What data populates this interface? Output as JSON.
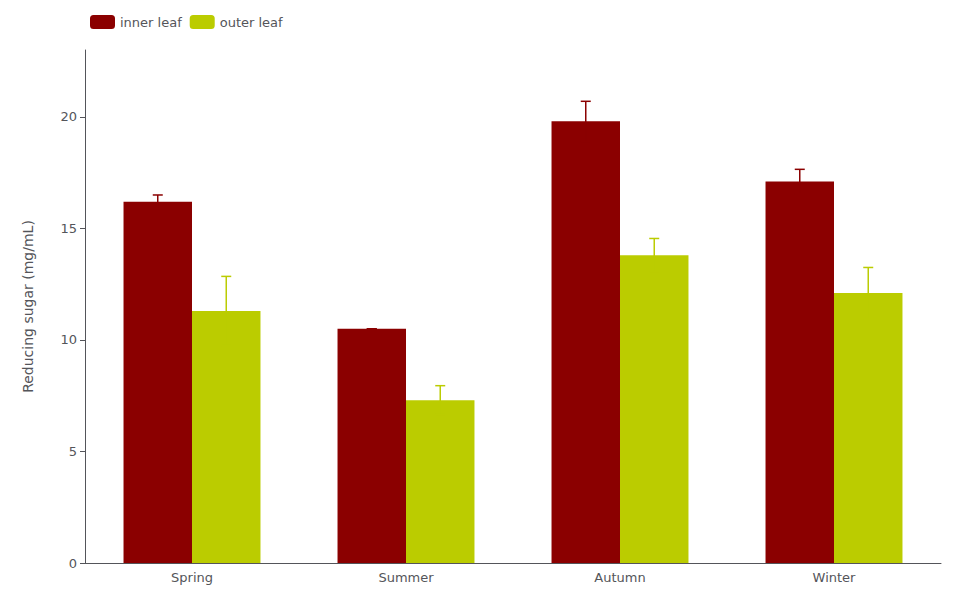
{
  "chart_data": {
    "type": "bar",
    "categories": [
      "Spring",
      "Summer",
      "Autumn",
      "Winter"
    ],
    "series": [
      {
        "name": "inner leaf",
        "color": "#8B0000",
        "values": [
          16.2,
          10.5,
          19.8,
          17.1
        ],
        "errors": [
          0.3,
          0.0,
          0.9,
          0.55
        ]
      },
      {
        "name": "outer leaf",
        "color": "#BBCC00",
        "values": [
          11.3,
          7.3,
          13.8,
          12.1
        ],
        "errors": [
          1.55,
          0.65,
          0.75,
          1.15
        ]
      }
    ],
    "ylabel": "Reducing sugar (mg/mL)",
    "ylim": [
      0,
      23
    ],
    "yticks": [
      0,
      5,
      10,
      15,
      20
    ],
    "grid": false,
    "legend": "upper left"
  }
}
